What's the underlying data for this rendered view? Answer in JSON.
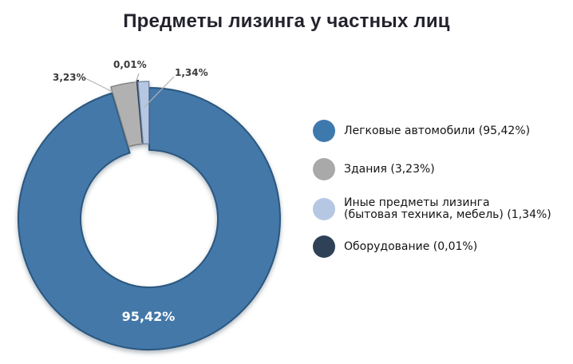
{
  "title": "Предметы лизинга у частных лиц",
  "chart_data": {
    "type": "pie",
    "subtype": "donut",
    "title": "Предметы лизинга у частных лиц",
    "unit": "%",
    "legend_position": "right",
    "start_angle_deg": 0,
    "direction": "clockwise",
    "slices": [
      {
        "name": "Легковые автомобили",
        "value": 95.42,
        "display": "95,42%",
        "color": "#4478a8",
        "stroke": "#2a5880",
        "explode": 0
      },
      {
        "name": "Здания",
        "value": 3.23,
        "display": "3,23%",
        "color": "#b1b1b1",
        "stroke": "#7c7c7c",
        "explode": 8
      },
      {
        "name": "Оборудование",
        "value": 0.01,
        "display": "0,01%",
        "color": "#273a4d",
        "stroke": "#273a4d",
        "explode": 10
      },
      {
        "name": "Иные предметы лизинга (бытовая техника, мебель)",
        "value": 1.34,
        "display": "1,34%",
        "color": "#b5c7e3",
        "stroke": "#74849f",
        "explode": 8
      }
    ],
    "legend": [
      {
        "label": "Легковые автомобили (95,42%)",
        "color": "#3e79ad"
      },
      {
        "label": "Здания (3,23%)",
        "color": "#a9a9a9"
      },
      {
        "label": "Иные предметы лизинга",
        "label2": "(бытовая техника, мебель) (1,34%)",
        "color": "#b5c7e3"
      },
      {
        "label": "Оборудование (0,01%)",
        "color": "#2e4156"
      }
    ]
  }
}
